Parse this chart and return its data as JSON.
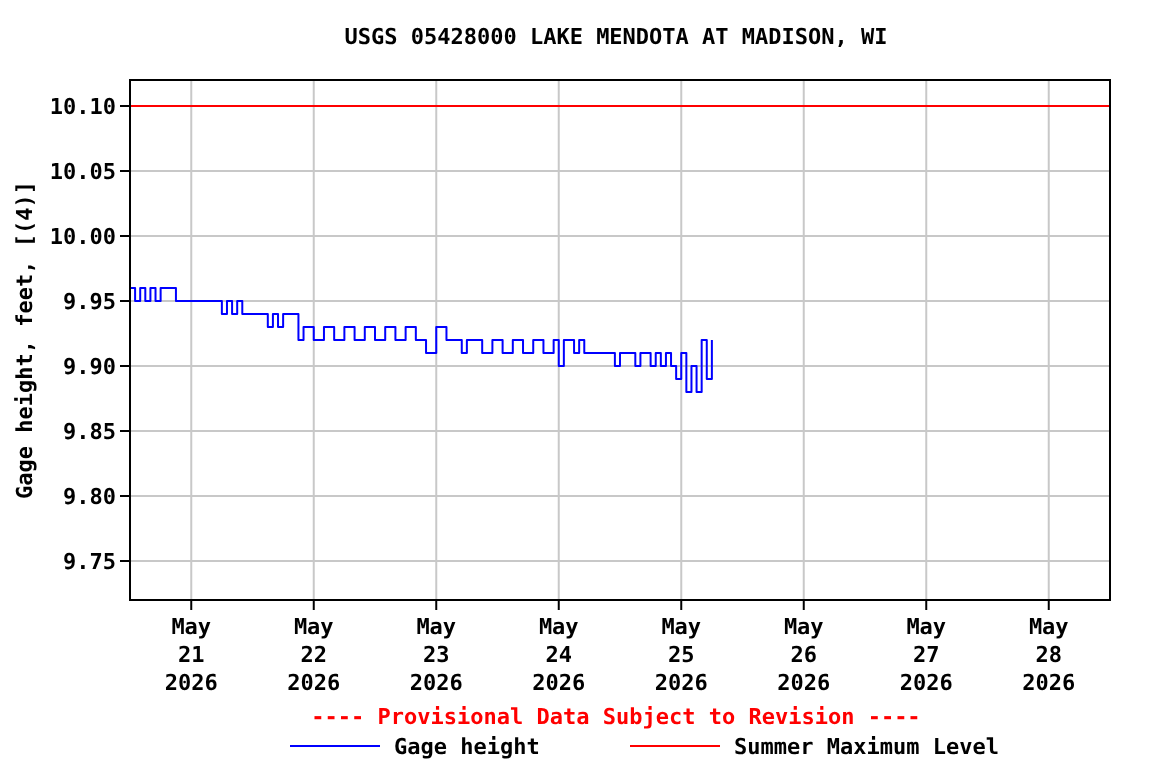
{
  "chart_data": {
    "type": "step",
    "title": "USGS 05428000 LAKE MENDOTA AT MADISON, WI",
    "ylabel": "Gage height, feet, [(4)]",
    "annotations": [
      "---- Provisional Data Subject to Revision ----"
    ],
    "xlim": [
      "2026-05-20T12:00",
      "2026-05-28T12:00"
    ],
    "xticks": [
      {
        "value": "2026-05-21",
        "label": "May\n21\n2026"
      },
      {
        "value": "2026-05-22",
        "label": "May\n22\n2026"
      },
      {
        "value": "2026-05-23",
        "label": "May\n23\n2026"
      },
      {
        "value": "2026-05-24",
        "label": "May\n24\n2026"
      },
      {
        "value": "2026-05-25",
        "label": "May\n25\n2026"
      },
      {
        "value": "2026-05-26",
        "label": "May\n26\n2026"
      },
      {
        "value": "2026-05-27",
        "label": "May\n27\n2026"
      },
      {
        "value": "2026-05-28",
        "label": "May\n28\n2026"
      }
    ],
    "ylim": [
      9.72,
      10.12
    ],
    "yticks": [
      {
        "value": 9.75,
        "label": "9.75"
      },
      {
        "value": 9.8,
        "label": "9.80"
      },
      {
        "value": 9.85,
        "label": "9.85"
      },
      {
        "value": 9.9,
        "label": "9.90"
      },
      {
        "value": 9.95,
        "label": "9.95"
      },
      {
        "value": 10,
        "label": "10.00"
      },
      {
        "value": 10.05,
        "label": "10.05"
      },
      {
        "value": 10.1,
        "label": "10.10"
      }
    ],
    "grid": true,
    "legend": "bottom",
    "marker": "none",
    "ref_lines": [
      {
        "axis": "y",
        "value": 10.1,
        "label": "Summer Maximum Level",
        "color": "#ff0000"
      }
    ],
    "series": [
      {
        "name": "Gage height",
        "color": "#0000ff",
        "x": [
          "2026-05-20T12:00",
          "2026-05-20T13:00",
          "2026-05-20T14:00",
          "2026-05-20T15:00",
          "2026-05-20T16:00",
          "2026-05-20T17:00",
          "2026-05-20T18:00",
          "2026-05-20T21:00",
          "2026-05-21T06:00",
          "2026-05-21T07:00",
          "2026-05-21T08:00",
          "2026-05-21T09:00",
          "2026-05-21T10:00",
          "2026-05-21T15:00",
          "2026-05-21T16:00",
          "2026-05-21T17:00",
          "2026-05-21T18:00",
          "2026-05-21T21:00",
          "2026-05-21T22:00",
          "2026-05-22T00:00",
          "2026-05-22T02:00",
          "2026-05-22T04:00",
          "2026-05-22T06:00",
          "2026-05-22T08:00",
          "2026-05-22T10:00",
          "2026-05-22T12:00",
          "2026-05-22T14:00",
          "2026-05-22T16:00",
          "2026-05-22T18:00",
          "2026-05-22T20:00",
          "2026-05-22T22:00",
          "2026-05-23T00:00",
          "2026-05-23T02:00",
          "2026-05-23T05:00",
          "2026-05-23T06:00",
          "2026-05-23T09:00",
          "2026-05-23T11:00",
          "2026-05-23T13:00",
          "2026-05-23T15:00",
          "2026-05-23T17:00",
          "2026-05-23T19:00",
          "2026-05-23T21:00",
          "2026-05-23T23:00",
          "2026-05-24T00:00",
          "2026-05-24T01:00",
          "2026-05-24T03:00",
          "2026-05-24T04:00",
          "2026-05-24T05:00",
          "2026-05-24T11:00",
          "2026-05-24T12:00",
          "2026-05-24T15:00",
          "2026-05-24T16:00",
          "2026-05-24T18:00",
          "2026-05-24T19:00",
          "2026-05-24T20:00",
          "2026-05-24T21:00",
          "2026-05-24T22:00",
          "2026-05-24T23:00",
          "2026-05-25T00:00",
          "2026-05-25T01:00",
          "2026-05-25T02:00",
          "2026-05-25T03:00",
          "2026-05-25T04:00",
          "2026-05-25T05:00",
          "2026-05-25T06:00"
        ],
        "values": [
          9.96,
          9.95,
          9.96,
          9.95,
          9.96,
          9.95,
          9.96,
          9.95,
          9.94,
          9.95,
          9.94,
          9.95,
          9.94,
          9.93,
          9.94,
          9.93,
          9.94,
          9.92,
          9.93,
          9.92,
          9.93,
          9.92,
          9.93,
          9.92,
          9.93,
          9.92,
          9.93,
          9.92,
          9.93,
          9.92,
          9.91,
          9.93,
          9.92,
          9.91,
          9.92,
          9.91,
          9.92,
          9.91,
          9.92,
          9.91,
          9.92,
          9.91,
          9.92,
          9.9,
          9.92,
          9.91,
          9.92,
          9.91,
          9.9,
          9.91,
          9.9,
          9.91,
          9.9,
          9.91,
          9.9,
          9.91,
          9.9,
          9.89,
          9.91,
          9.88,
          9.9,
          9.88,
          9.92,
          9.89,
          9.92
        ]
      }
    ]
  }
}
